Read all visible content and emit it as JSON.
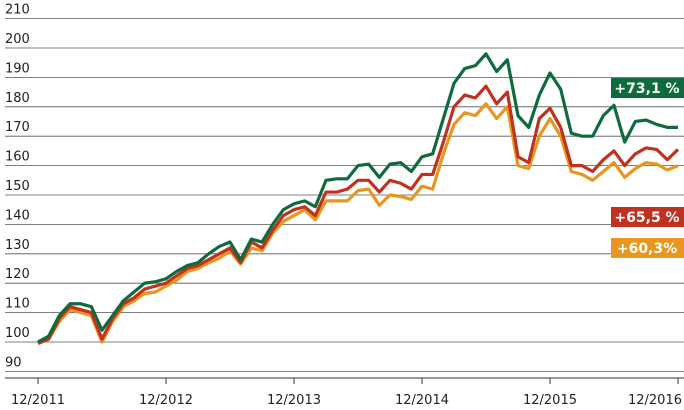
{
  "chart_data": {
    "type": "line",
    "categories": [
      "12/2011",
      null,
      null,
      null,
      null,
      null,
      null,
      null,
      null,
      null,
      null,
      null,
      "12/2012",
      null,
      null,
      null,
      null,
      null,
      null,
      null,
      null,
      null,
      null,
      null,
      "12/2013",
      null,
      null,
      null,
      null,
      null,
      null,
      null,
      null,
      null,
      null,
      null,
      "12/2014",
      null,
      null,
      null,
      null,
      null,
      null,
      null,
      null,
      null,
      null,
      null,
      "12/2015",
      null,
      null,
      null,
      null,
      null,
      null,
      null,
      null,
      null,
      null,
      null,
      "12/2016"
    ],
    "series": [
      {
        "name": "+73,1 %",
        "color": "#0e6b3e",
        "values": [
          100,
          102,
          109,
          113,
          113,
          112,
          104,
          109,
          114,
          117,
          120,
          120.5,
          121.5,
          124,
          126,
          127,
          130,
          132.5,
          134,
          128,
          135,
          134,
          140,
          145,
          147,
          148,
          146,
          155,
          155.5,
          155.5,
          160,
          160.5,
          156,
          160.5,
          161,
          158,
          163,
          164,
          176,
          188,
          193,
          194,
          198,
          192,
          196,
          177,
          173,
          184,
          191.5,
          186,
          171,
          170,
          170,
          177,
          180.5,
          168,
          175,
          175.5,
          174,
          173,
          173
        ]
      },
      {
        "name": "+65,5 %",
        "color": "#c0311f",
        "values": [
          99.5,
          101,
          108,
          112,
          111,
          110,
          101,
          108,
          113,
          115,
          118,
          119,
          120,
          122.5,
          125,
          126,
          128,
          130,
          132,
          127,
          134,
          132,
          138,
          143,
          145,
          146,
          143,
          151,
          151,
          152,
          155,
          155,
          151,
          155,
          154,
          152,
          157,
          157,
          168,
          180,
          184,
          183,
          187,
          181,
          185,
          163,
          161,
          176,
          179.5,
          173,
          160,
          160,
          158,
          162,
          165,
          160,
          164,
          166,
          165.5,
          162,
          165.5
        ]
      },
      {
        "name": "+60,3%",
        "color": "#e8961e",
        "values": [
          100,
          101,
          107,
          111,
          110,
          109,
          100,
          107,
          112,
          114,
          116.5,
          117,
          119,
          121,
          124,
          125,
          127,
          128.5,
          131,
          126.5,
          132,
          131,
          137,
          141,
          143,
          145,
          141.5,
          148,
          148,
          148,
          151.5,
          152,
          146.5,
          150,
          149.5,
          148.5,
          153,
          152,
          164,
          174,
          178,
          177,
          181,
          176,
          180,
          160,
          159,
          170,
          176,
          170,
          158,
          157,
          155,
          158,
          161,
          156,
          159,
          161,
          160.5,
          158.5,
          160
        ]
      }
    ],
    "ylim": [
      90,
      210
    ],
    "yticks": [
      90,
      100,
      110,
      120,
      130,
      140,
      150,
      160,
      170,
      180,
      190,
      200,
      210
    ],
    "grid": true
  }
}
